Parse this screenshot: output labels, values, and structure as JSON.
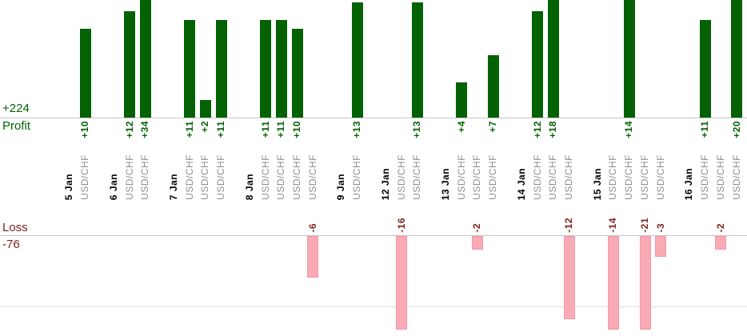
{
  "chart_data": {
    "type": "bar",
    "legend_position": "left",
    "grid": "horizontal-baselines",
    "profit_section": {
      "label": "Profit",
      "total": "+224",
      "bar_color": "#046104",
      "text_color": "#006400"
    },
    "loss_section": {
      "label": "Loss",
      "total": "-76",
      "bar_color": "#f9aab5",
      "text_color": "#7b241c"
    },
    "groups": [
      {
        "date": "5 Jan",
        "trades": [
          {
            "symbol": "USD/CHF",
            "value": 10,
            "label": "+10"
          }
        ]
      },
      {
        "date": "6 Jan",
        "trades": [
          {
            "symbol": "USD/CHF",
            "value": 12,
            "label": "+12"
          },
          {
            "symbol": "USD/CHF",
            "value": 34,
            "label": "+34"
          }
        ]
      },
      {
        "date": "7 Jan",
        "trades": [
          {
            "symbol": "USD/CHF",
            "value": 11,
            "label": "+11"
          },
          {
            "symbol": "USD/CHF",
            "value": 2,
            "label": "+2"
          },
          {
            "symbol": "USD/CHF",
            "value": 11,
            "label": "+11"
          }
        ]
      },
      {
        "date": "8 Jan",
        "trades": [
          {
            "symbol": "USD/CHF",
            "value": 11,
            "label": "+11"
          },
          {
            "symbol": "USD/CHF",
            "value": 11,
            "label": "+11"
          },
          {
            "symbol": "USD/CHF",
            "value": 10,
            "label": "+10"
          },
          {
            "symbol": "USD/CHF",
            "value": -6,
            "label": "-6"
          }
        ]
      },
      {
        "date": "9 Jan",
        "trades": [
          {
            "symbol": "USD/CHF",
            "value": 13,
            "label": "+13"
          }
        ]
      },
      {
        "date": "12 Jan",
        "trades": [
          {
            "symbol": "USD/CHF",
            "value": -16,
            "label": "-16"
          },
          {
            "symbol": "USD/CHF",
            "value": 13,
            "label": "+13"
          }
        ]
      },
      {
        "date": "13 Jan",
        "trades": [
          {
            "symbol": "USD/CHF",
            "value": 4,
            "label": "+4"
          },
          {
            "symbol": "USD/CHF",
            "value": -2,
            "label": "-2"
          },
          {
            "symbol": "USD/CHF",
            "value": 7,
            "label": "+7"
          }
        ]
      },
      {
        "date": "14 Jan",
        "trades": [
          {
            "symbol": "USD/CHF",
            "value": 12,
            "label": "+12"
          },
          {
            "symbol": "USD/CHF",
            "value": 18,
            "label": "+18"
          },
          {
            "symbol": "USD/CHF",
            "value": -12,
            "label": "-12"
          }
        ]
      },
      {
        "date": "15 Jan",
        "trades": [
          {
            "symbol": "USD/CHF",
            "value": -14,
            "label": "-14"
          },
          {
            "symbol": "USD/CHF",
            "value": 14,
            "label": "+14"
          },
          {
            "symbol": "USD/CHF",
            "value": -21,
            "label": "-21"
          },
          {
            "symbol": "USD/CHF",
            "value": -3,
            "label": "-3"
          }
        ]
      },
      {
        "date": "16 Jan",
        "trades": [
          {
            "symbol": "USD/CHF",
            "value": 11,
            "label": "+11"
          },
          {
            "symbol": "USD/CHF",
            "value": -2,
            "label": "-2"
          },
          {
            "symbol": "USD/CHF",
            "value": 20,
            "label": "+20"
          }
        ]
      }
    ]
  }
}
